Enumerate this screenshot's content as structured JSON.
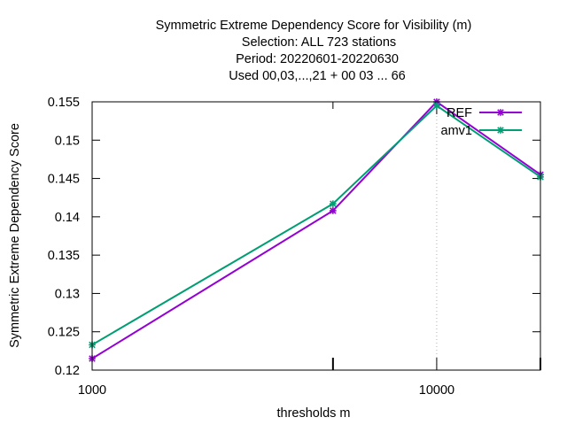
{
  "title_lines": [
    "Symmetric Extreme Dependency Score  for Visibility (m)",
    "Selection: ALL     723 stations",
    "Period: 20220601-20220630",
    "Used  00,03,...,21  + 00 03 ... 66"
  ],
  "chart_data": {
    "type": "line",
    "title": "Symmetric Extreme Dependency Score  for Visibility (m)",
    "xlabel": "thresholds m",
    "ylabel": "Symmetric Extreme Dependency Score",
    "x_scale": "log",
    "xlim": [
      1000,
      20000
    ],
    "ylim": [
      0.12,
      0.155
    ],
    "x_tick_labels": [
      {
        "value": 1000,
        "label": "1000"
      },
      {
        "value": 10000,
        "label": "10000"
      }
    ],
    "x_minor_ticks": [
      5000
    ],
    "y_ticks": [
      0.12,
      0.125,
      0.13,
      0.135,
      0.14,
      0.145,
      0.15,
      0.155
    ],
    "y_tick_labels": [
      "0.12",
      "0.125",
      "0.13",
      "0.135",
      "0.14",
      "0.145",
      "0.15",
      "0.155"
    ],
    "grid": {
      "x": [
        10000
      ],
      "y": [
        0.155
      ]
    },
    "legend_position": "top-right",
    "series": [
      {
        "name": "REF",
        "color": "#9400d3",
        "x": [
          1000,
          5000,
          10000,
          20000
        ],
        "y": [
          0.1215,
          0.1408,
          0.155,
          0.1455
        ]
      },
      {
        "name": "amv1",
        "color": "#009e73",
        "x": [
          1000,
          5000,
          10000,
          20000
        ],
        "y": [
          0.1233,
          0.1417,
          0.1545,
          0.1452
        ]
      }
    ]
  }
}
